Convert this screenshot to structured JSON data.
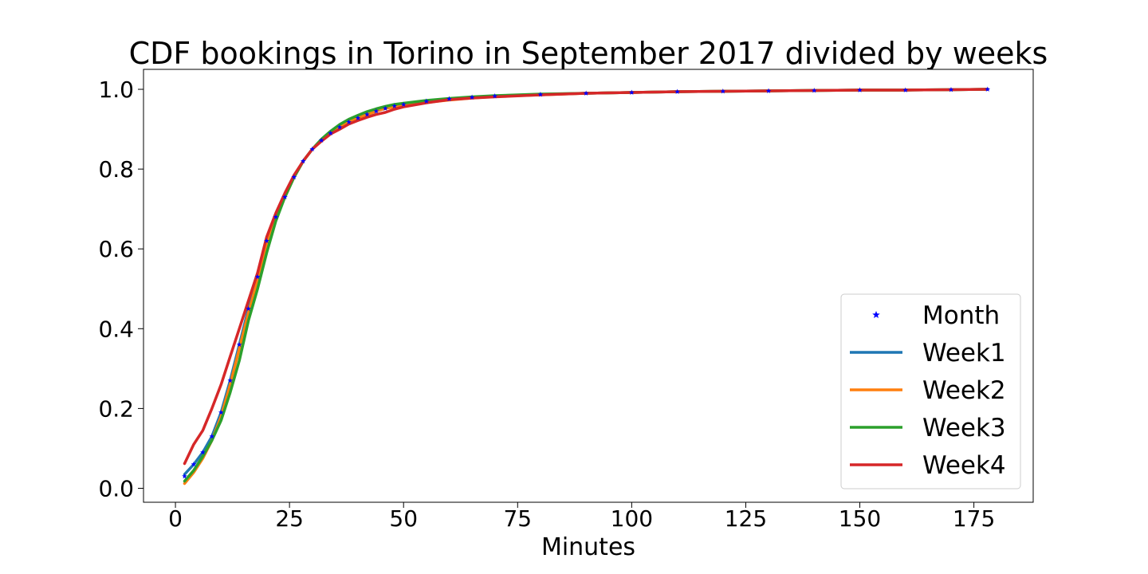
{
  "chart_data": {
    "type": "line",
    "title": "CDF bookings in Torino in September 2017 divided by weeks",
    "xlabel": "Minutes",
    "ylabel": "",
    "xlim": [
      -7,
      188
    ],
    "ylim": [
      -0.035,
      1.05
    ],
    "xticks": [
      0,
      25,
      50,
      75,
      100,
      125,
      150,
      175
    ],
    "xtick_labels": [
      "0",
      "25",
      "50",
      "75",
      "100",
      "125",
      "150",
      "175"
    ],
    "yticks": [
      0.0,
      0.2,
      0.4,
      0.6,
      0.8,
      1.0
    ],
    "ytick_labels": [
      "0.0",
      "0.2",
      "0.4",
      "0.6",
      "0.8",
      "1.0"
    ],
    "grid": false,
    "legend_position": "lower-right",
    "series": [
      {
        "name": "Month",
        "style": "markers",
        "marker": "star",
        "color": "#0000ff",
        "x": [
          2,
          4,
          6,
          8,
          10,
          12,
          14,
          16,
          18,
          20,
          22,
          24,
          26,
          28,
          30,
          32,
          34,
          36,
          38,
          40,
          42,
          44,
          46,
          48,
          50,
          55,
          60,
          65,
          70,
          80,
          90,
          100,
          110,
          120,
          130,
          140,
          150,
          160,
          170,
          178
        ],
        "y": [
          0.03,
          0.06,
          0.09,
          0.13,
          0.19,
          0.27,
          0.36,
          0.45,
          0.53,
          0.62,
          0.68,
          0.73,
          0.78,
          0.82,
          0.85,
          0.872,
          0.89,
          0.905,
          0.918,
          0.928,
          0.937,
          0.945,
          0.952,
          0.958,
          0.962,
          0.97,
          0.976,
          0.98,
          0.983,
          0.987,
          0.99,
          0.992,
          0.994,
          0.995,
          0.996,
          0.997,
          0.998,
          0.998,
          0.999,
          1.0
        ]
      },
      {
        "name": "Week1",
        "style": "line",
        "color": "#1f77b4",
        "x": [
          2,
          4,
          6,
          8,
          10,
          12,
          14,
          16,
          18,
          20,
          22,
          24,
          26,
          28,
          30,
          32,
          34,
          36,
          38,
          40,
          42,
          44,
          46,
          48,
          50,
          55,
          60,
          65,
          70,
          80,
          90,
          100,
          110,
          120,
          130,
          140,
          150,
          160,
          170,
          178
        ],
        "y": [
          0.035,
          0.06,
          0.09,
          0.13,
          0.19,
          0.27,
          0.36,
          0.45,
          0.53,
          0.62,
          0.68,
          0.73,
          0.78,
          0.82,
          0.85,
          0.872,
          0.89,
          0.905,
          0.918,
          0.928,
          0.937,
          0.945,
          0.952,
          0.958,
          0.962,
          0.97,
          0.976,
          0.98,
          0.983,
          0.987,
          0.99,
          0.992,
          0.994,
          0.995,
          0.996,
          0.997,
          0.998,
          0.998,
          0.999,
          1.0
        ]
      },
      {
        "name": "Week2",
        "style": "line",
        "color": "#ff7f0e",
        "x": [
          2,
          4,
          6,
          8,
          10,
          12,
          14,
          16,
          18,
          20,
          22,
          24,
          26,
          28,
          30,
          32,
          34,
          36,
          38,
          40,
          42,
          44,
          46,
          48,
          50,
          55,
          60,
          65,
          70,
          80,
          90,
          100,
          110,
          120,
          130,
          140,
          150,
          160,
          170,
          178
        ],
        "y": [
          0.012,
          0.04,
          0.075,
          0.12,
          0.18,
          0.26,
          0.35,
          0.44,
          0.52,
          0.61,
          0.68,
          0.73,
          0.78,
          0.82,
          0.85,
          0.872,
          0.89,
          0.905,
          0.918,
          0.928,
          0.937,
          0.945,
          0.952,
          0.956,
          0.96,
          0.967,
          0.973,
          0.978,
          0.982,
          0.986,
          0.99,
          0.992,
          0.994,
          0.995,
          0.996,
          0.997,
          0.998,
          0.998,
          0.999,
          1.0
        ]
      },
      {
        "name": "Week3",
        "style": "line",
        "color": "#2ca02c",
        "x": [
          2,
          4,
          6,
          8,
          10,
          12,
          14,
          16,
          18,
          20,
          22,
          24,
          26,
          28,
          30,
          32,
          34,
          36,
          38,
          40,
          42,
          44,
          46,
          48,
          50,
          55,
          60,
          65,
          70,
          80,
          90,
          100,
          110,
          120,
          130,
          140,
          150,
          160,
          170,
          178
        ],
        "y": [
          0.018,
          0.045,
          0.08,
          0.12,
          0.17,
          0.24,
          0.32,
          0.42,
          0.5,
          0.59,
          0.67,
          0.73,
          0.78,
          0.82,
          0.85,
          0.875,
          0.895,
          0.912,
          0.925,
          0.935,
          0.944,
          0.951,
          0.957,
          0.962,
          0.965,
          0.972,
          0.977,
          0.981,
          0.984,
          0.988,
          0.99,
          0.992,
          0.994,
          0.995,
          0.996,
          0.997,
          0.998,
          0.998,
          0.999,
          1.0
        ]
      },
      {
        "name": "Week4",
        "style": "line",
        "color": "#d62728",
        "x": [
          2,
          4,
          6,
          8,
          10,
          12,
          14,
          16,
          18,
          20,
          22,
          24,
          26,
          28,
          30,
          32,
          34,
          36,
          38,
          40,
          42,
          44,
          46,
          48,
          50,
          55,
          60,
          65,
          70,
          80,
          90,
          100,
          110,
          120,
          130,
          140,
          150,
          160,
          170,
          178
        ],
        "y": [
          0.062,
          0.11,
          0.145,
          0.2,
          0.26,
          0.33,
          0.4,
          0.47,
          0.54,
          0.63,
          0.69,
          0.74,
          0.785,
          0.82,
          0.85,
          0.87,
          0.888,
          0.9,
          0.913,
          0.922,
          0.93,
          0.937,
          0.942,
          0.95,
          0.956,
          0.966,
          0.974,
          0.978,
          0.981,
          0.986,
          0.99,
          0.992,
          0.994,
          0.995,
          0.996,
          0.997,
          0.998,
          0.998,
          0.999,
          1.0
        ]
      }
    ]
  }
}
